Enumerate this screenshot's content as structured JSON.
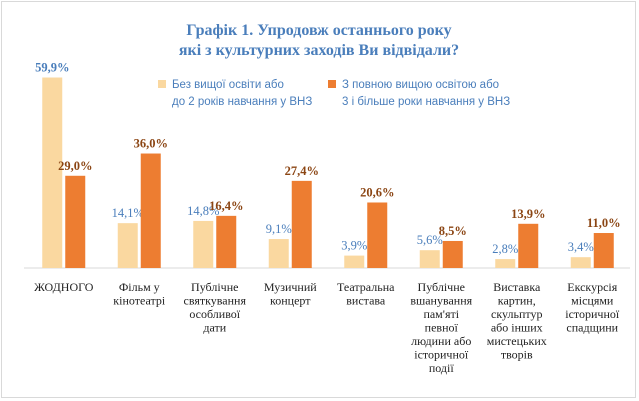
{
  "colors": {
    "series_a": "#fad8a0",
    "series_b": "#ed7d31",
    "label_a": "#4a7ebb",
    "label_b": "#8b4513",
    "title": "#4a7ebb",
    "axis": "#d9d9d9"
  },
  "chart_data": {
    "type": "bar",
    "title": [
      "Графік 1. Упродовж останнього року",
      "які з культурних заходів Ви відвідали?"
    ],
    "xlabel": "",
    "ylabel": "",
    "ylim": [
      0,
      65
    ],
    "grid": false,
    "legend_position": "top",
    "legend": [
      [
        "Без вищої освіти або",
        "до 2 років навчання у ВНЗ"
      ],
      [
        "З повною вищою освітою або",
        "3 і більше роки навчання у ВНЗ"
      ]
    ],
    "categories": [
      [
        "ЖОДНОГО"
      ],
      [
        "Фільм у",
        "кінотеатрі"
      ],
      [
        "Публічне",
        "святкування",
        "особливої",
        "дати"
      ],
      [
        "Музичний",
        "концерт"
      ],
      [
        "Театральна",
        "вистава"
      ],
      [
        "Публічне",
        "вшанування",
        "пам'яті",
        "певної",
        "людини або",
        "історичної",
        "події"
      ],
      [
        "Виставка",
        "картин,",
        "скульптур",
        "або інших",
        "мистецьких",
        "творів"
      ],
      [
        "Екскурсія",
        "місцями",
        "історичної",
        "спадщини"
      ]
    ],
    "series": [
      {
        "values": [
          59.9,
          14.1,
          14.8,
          9.1,
          3.9,
          5.6,
          2.8,
          3.4
        ],
        "labels": [
          "59,9%",
          "14,1%",
          "14,8%",
          "9,1%",
          "3,9%",
          "5,6%",
          "2,8%",
          "3,4%"
        ]
      },
      {
        "values": [
          29.0,
          36.0,
          16.4,
          27.4,
          20.6,
          8.5,
          13.9,
          11.0
        ],
        "labels": [
          "29,0%",
          "36,0%",
          "16,4%",
          "27,4%",
          "20,6%",
          "8,5%",
          "13,9%",
          "11,0%"
        ]
      }
    ]
  }
}
